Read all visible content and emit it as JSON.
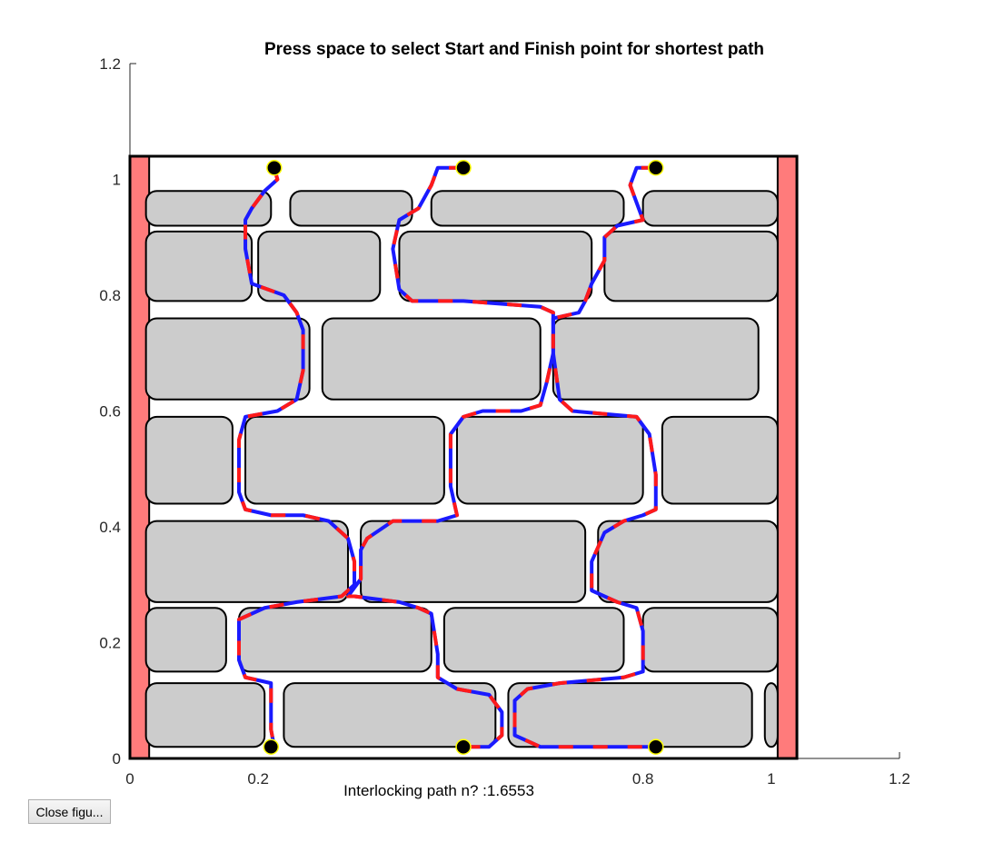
{
  "window": {
    "close_button_label": "Close figu..."
  },
  "chart_data": {
    "type": "line",
    "title": "Press space to select Start and Finish point for shortest path",
    "xlabel": "Interlocking path n? :1.6553",
    "ylabel": "",
    "xlim": [
      0,
      1.2
    ],
    "ylim": [
      0,
      1.2
    ],
    "xticks": [
      0,
      0.2,
      0.4,
      0.6,
      0.8,
      1,
      1.2
    ],
    "xtick_labels": [
      "0",
      "0.2",
      "",
      "",
      "0.8",
      "1",
      "1.2"
    ],
    "yticks": [
      0,
      0.2,
      0.4,
      0.6,
      0.8,
      1,
      1.2
    ],
    "ytick_labels": [
      "0",
      "0.2",
      "0.4",
      "0.6",
      "0.8",
      "1",
      "1.2"
    ],
    "grid": false,
    "colors": {
      "wall_edge": "#ff7b7b",
      "stone_fill": "#cccccc",
      "stone_outline": "#000000",
      "path_primary": "#1a1aff",
      "path_dash": "#ff1a1a",
      "marker": "#000000",
      "marker_edge": "#ffff00"
    },
    "frame": {
      "x": [
        0,
        1.04
      ],
      "y": [
        0,
        1.04
      ]
    },
    "side_bands": [
      {
        "x": [
          0,
          0.03
        ]
      },
      {
        "x": [
          1.01,
          1.04
        ]
      }
    ],
    "stones": [
      {
        "x": [
          0.025,
          0.22
        ],
        "y": [
          0.92,
          0.98
        ]
      },
      {
        "x": [
          0.25,
          0.44
        ],
        "y": [
          0.92,
          0.98
        ]
      },
      {
        "x": [
          0.47,
          0.77
        ],
        "y": [
          0.92,
          0.98
        ]
      },
      {
        "x": [
          0.8,
          1.01
        ],
        "y": [
          0.92,
          0.98
        ]
      },
      {
        "x": [
          0.025,
          0.19
        ],
        "y": [
          0.79,
          0.91
        ]
      },
      {
        "x": [
          0.2,
          0.39
        ],
        "y": [
          0.79,
          0.91
        ]
      },
      {
        "x": [
          0.42,
          0.72
        ],
        "y": [
          0.79,
          0.91
        ]
      },
      {
        "x": [
          0.74,
          1.01
        ],
        "y": [
          0.79,
          0.91
        ]
      },
      {
        "x": [
          0.025,
          0.28
        ],
        "y": [
          0.62,
          0.76
        ]
      },
      {
        "x": [
          0.3,
          0.64
        ],
        "y": [
          0.62,
          0.76
        ]
      },
      {
        "x": [
          0.66,
          0.98
        ],
        "y": [
          0.62,
          0.76
        ]
      },
      {
        "x": [
          0.025,
          0.16
        ],
        "y": [
          0.44,
          0.59
        ]
      },
      {
        "x": [
          0.18,
          0.49
        ],
        "y": [
          0.44,
          0.59
        ]
      },
      {
        "x": [
          0.51,
          0.8
        ],
        "y": [
          0.44,
          0.59
        ]
      },
      {
        "x": [
          0.83,
          1.01
        ],
        "y": [
          0.44,
          0.59
        ]
      },
      {
        "x": [
          0.025,
          0.34
        ],
        "y": [
          0.27,
          0.41
        ]
      },
      {
        "x": [
          0.36,
          0.71
        ],
        "y": [
          0.27,
          0.41
        ]
      },
      {
        "x": [
          0.73,
          1.01
        ],
        "y": [
          0.27,
          0.41
        ]
      },
      {
        "x": [
          0.025,
          0.15
        ],
        "y": [
          0.15,
          0.26
        ]
      },
      {
        "x": [
          0.17,
          0.47
        ],
        "y": [
          0.15,
          0.26
        ]
      },
      {
        "x": [
          0.49,
          0.77
        ],
        "y": [
          0.15,
          0.26
        ]
      },
      {
        "x": [
          0.8,
          1.01
        ],
        "y": [
          0.15,
          0.26
        ]
      },
      {
        "x": [
          0.025,
          0.21
        ],
        "y": [
          0.02,
          0.13
        ]
      },
      {
        "x": [
          0.24,
          0.57
        ],
        "y": [
          0.02,
          0.13
        ]
      },
      {
        "x": [
          0.59,
          0.97
        ],
        "y": [
          0.02,
          0.13
        ]
      },
      {
        "x": [
          0.99,
          1.01
        ],
        "y": [
          0.02,
          0.13
        ]
      }
    ],
    "series": [
      {
        "x": [
          0.225,
          0.23,
          0.21,
          0.19,
          0.18,
          0.18,
          0.19,
          0.24,
          0.26,
          0.27,
          0.27,
          0.26,
          0.23,
          0.18,
          0.17,
          0.17,
          0.18,
          0.22,
          0.27,
          0.31,
          0.34,
          0.35,
          0.35,
          0.33,
          0.26,
          0.21,
          0.17,
          0.17,
          0.18,
          0.22,
          0.22,
          0.225
        ],
        "y": [
          1.02,
          1.0,
          0.98,
          0.95,
          0.93,
          0.88,
          0.82,
          0.8,
          0.77,
          0.74,
          0.67,
          0.62,
          0.6,
          0.59,
          0.55,
          0.46,
          0.43,
          0.42,
          0.42,
          0.41,
          0.38,
          0.34,
          0.3,
          0.28,
          0.27,
          0.26,
          0.24,
          0.17,
          0.14,
          0.13,
          0.05,
          0.02
        ]
      },
      {
        "x": [
          0.52,
          0.48,
          0.47,
          0.45,
          0.42,
          0.41,
          0.42,
          0.44,
          0.52,
          0.64,
          0.66,
          0.66,
          0.65,
          0.64,
          0.61,
          0.55,
          0.52,
          0.5,
          0.5,
          0.51,
          0.48,
          0.41,
          0.37,
          0.36,
          0.36,
          0.34,
          0.35,
          0.42,
          0.45,
          0.47,
          0.48,
          0.48,
          0.51,
          0.56,
          0.58,
          0.58,
          0.56,
          0.52
        ],
        "y": [
          1.02,
          1.02,
          0.99,
          0.95,
          0.93,
          0.88,
          0.81,
          0.79,
          0.79,
          0.78,
          0.77,
          0.7,
          0.65,
          0.61,
          0.6,
          0.6,
          0.59,
          0.56,
          0.47,
          0.42,
          0.41,
          0.41,
          0.38,
          0.36,
          0.31,
          0.28,
          0.28,
          0.27,
          0.26,
          0.25,
          0.18,
          0.14,
          0.12,
          0.11,
          0.08,
          0.04,
          0.02,
          0.02
        ]
      },
      {
        "x": [
          0.82,
          0.79,
          0.78,
          0.79,
          0.8,
          0.76,
          0.74,
          0.74,
          0.72,
          0.71,
          0.7,
          0.66,
          0.66,
          0.67,
          0.69,
          0.79,
          0.81,
          0.82,
          0.82,
          0.8,
          0.77,
          0.74,
          0.72,
          0.72,
          0.76,
          0.79,
          0.8,
          0.8,
          0.77,
          0.67,
          0.62,
          0.6,
          0.6,
          0.64,
          0.73,
          0.82
        ],
        "y": [
          1.02,
          1.02,
          0.99,
          0.96,
          0.93,
          0.92,
          0.9,
          0.86,
          0.82,
          0.79,
          0.77,
          0.76,
          0.7,
          0.62,
          0.6,
          0.59,
          0.56,
          0.49,
          0.43,
          0.42,
          0.41,
          0.39,
          0.34,
          0.29,
          0.27,
          0.26,
          0.22,
          0.15,
          0.14,
          0.13,
          0.12,
          0.1,
          0.04,
          0.02,
          0.02,
          0.02
        ]
      }
    ],
    "markers": [
      {
        "x": 0.225,
        "y": 1.02
      },
      {
        "x": 0.52,
        "y": 1.02
      },
      {
        "x": 0.82,
        "y": 1.02
      },
      {
        "x": 0.22,
        "y": 0.02
      },
      {
        "x": 0.52,
        "y": 0.02
      },
      {
        "x": 0.82,
        "y": 0.02
      }
    ]
  }
}
